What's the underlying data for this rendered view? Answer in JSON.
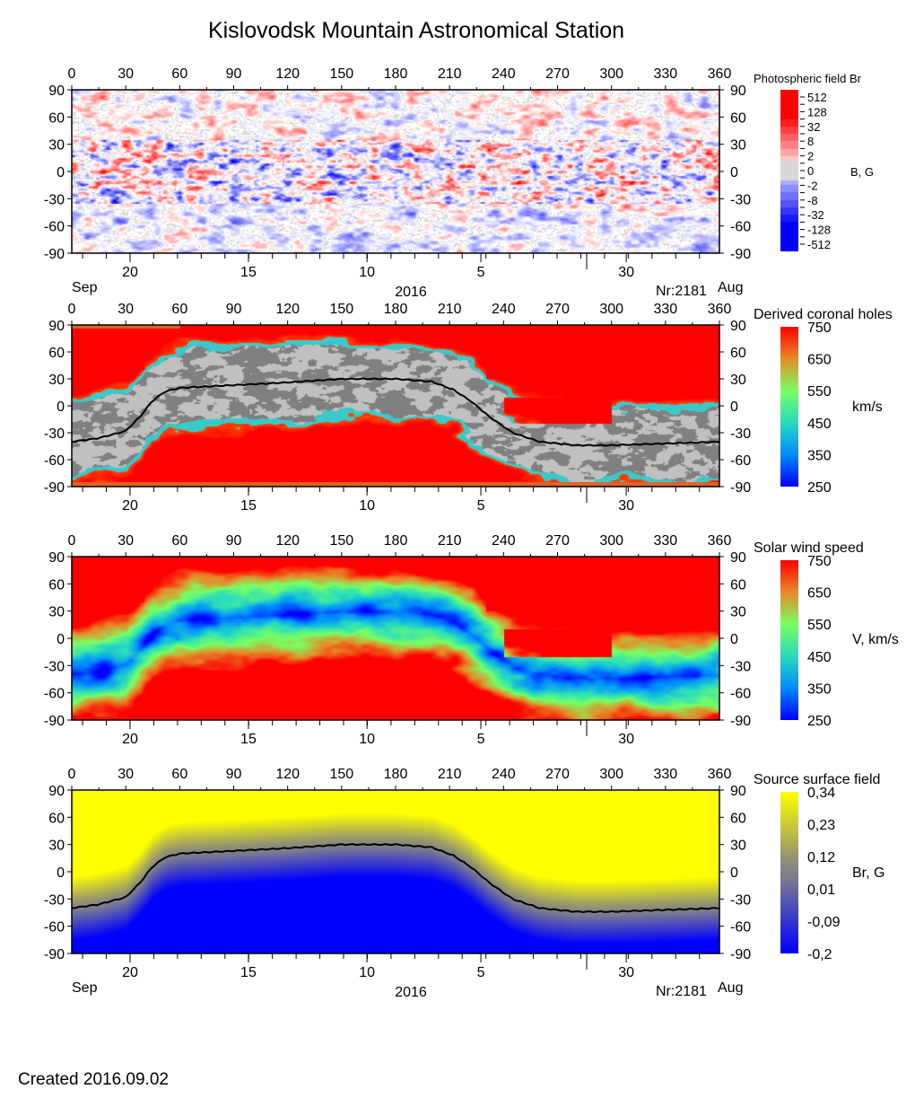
{
  "title": "Kislovodsk Mountain Astronomical Station",
  "created": "Created  2016.09.02",
  "chart_data": [
    {
      "type": "heatmap",
      "name": "photospheric",
      "colorbar_title": "Photospheric field Br",
      "unit": "B, G",
      "colorbar_ticks": [
        "512",
        "128",
        "32",
        "8",
        "2",
        "0",
        "-2",
        "-8",
        "-32",
        "-128",
        "-512"
      ],
      "xlim": [
        0,
        360
      ],
      "ylim": [
        -90,
        90
      ],
      "x_ticks": [
        0,
        30,
        60,
        90,
        120,
        150,
        180,
        210,
        240,
        270,
        300,
        330,
        360
      ],
      "y_ticks": [
        90,
        60,
        30,
        0,
        -30,
        -60,
        -90
      ],
      "date_axis": true,
      "colors": {
        "pos": "#ff0000",
        "neg": "#0000ff",
        "zero": "#d8d8d8"
      }
    },
    {
      "type": "heatmap",
      "name": "coronal-holes",
      "colorbar_title": "Derived coronal holes",
      "unit": "km/s",
      "colorbar_ticks": [
        "750",
        "650",
        "550",
        "450",
        "350",
        "250"
      ],
      "xlim": [
        0,
        360
      ],
      "ylim": [
        -90,
        90
      ],
      "x_ticks": [
        0,
        30,
        60,
        90,
        120,
        150,
        180,
        210,
        240,
        270,
        300,
        330,
        360
      ],
      "y_ticks": [
        90,
        60,
        30,
        0,
        -30,
        -60,
        -90
      ],
      "date_axis": false,
      "neutral_line": true
    },
    {
      "type": "heatmap",
      "name": "solar-wind",
      "colorbar_title": "Solar wind speed",
      "unit": "V, km/s",
      "colorbar_ticks": [
        "750",
        "650",
        "550",
        "450",
        "350",
        "250"
      ],
      "xlim": [
        0,
        360
      ],
      "ylim": [
        -90,
        90
      ],
      "x_ticks": [
        0,
        30,
        60,
        90,
        120,
        150,
        180,
        210,
        240,
        270,
        300,
        330,
        360
      ],
      "y_ticks": [
        90,
        60,
        30,
        0,
        -30,
        -60,
        -90
      ],
      "date_axis": false
    },
    {
      "type": "heatmap",
      "name": "source-surface",
      "colorbar_title": "Source surface field",
      "unit": "Br, G",
      "colorbar_ticks": [
        "0,34",
        "0,23",
        "0,12",
        "0,01",
        "-0,09",
        "-0,2"
      ],
      "xlim": [
        0,
        360
      ],
      "ylim": [
        -90,
        90
      ],
      "x_ticks": [
        0,
        30,
        60,
        90,
        120,
        150,
        180,
        210,
        240,
        270,
        300,
        330,
        360
      ],
      "y_ticks": [
        90,
        60,
        30,
        0,
        -30,
        -60,
        -90
      ],
      "date_axis": true,
      "neutral_line": true
    }
  ],
  "date_axis": {
    "ticks": [
      {
        "label": "20",
        "lon": 32.4
      },
      {
        "label": "15",
        "lon": 98.2
      },
      {
        "label": "10",
        "lon": 164.1
      },
      {
        "label": "5",
        "lon": 227.4
      },
      {
        "label": "30",
        "lon": 308.2
      }
    ],
    "month_boundary_lon": 286.2,
    "left_month": "Sep",
    "right_month": "Aug",
    "year": "2016",
    "rotation": "Nr:2181"
  },
  "neutral_line": {
    "lon": [
      0,
      15,
      30,
      38,
      45,
      52,
      60,
      90,
      120,
      150,
      180,
      200,
      212,
      222,
      232,
      245,
      260,
      280,
      300,
      330,
      360
    ],
    "lat": [
      -40,
      -36,
      -28,
      -12,
      6,
      16,
      20,
      23,
      26,
      30,
      30,
      27,
      18,
      5,
      -12,
      -30,
      -40,
      -44,
      -44,
      -42,
      -40
    ]
  }
}
